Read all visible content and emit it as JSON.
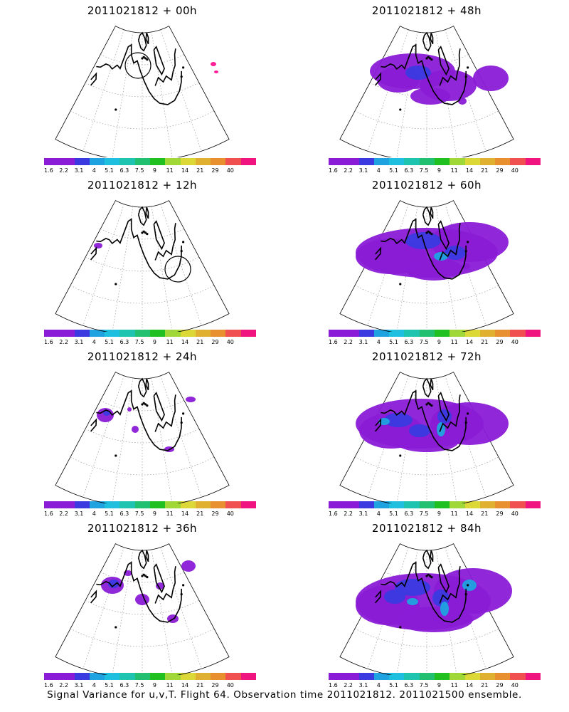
{
  "chart_data": [
    {
      "type": "heatmap",
      "title": "2011021812 + 00h",
      "ring": [
        194,
        92
      ],
      "blobs": [
        [
          300,
          90,
          4,
          3,
          "#ff1493"
        ],
        [
          304,
          101,
          3,
          2,
          "#ff1493"
        ]
      ]
    },
    {
      "type": "heatmap",
      "title": "2011021812 + 48h",
      "blobs": [
        [
          580,
          100,
          60,
          25,
          "#8a1bd6"
        ],
        [
          630,
          120,
          40,
          22,
          "#8a1bd6"
        ],
        [
          560,
          112,
          30,
          18,
          "#8a1bd6"
        ],
        [
          690,
          110,
          25,
          18,
          "#8a1bd6"
        ],
        [
          605,
          135,
          28,
          12,
          "#8a1bd6"
        ],
        [
          588,
          102,
          18,
          10,
          "#3a3ae0"
        ],
        [
          650,
          142,
          6,
          5,
          "#8a1bd6"
        ]
      ]
    },
    {
      "type": "heatmap",
      "title": "2011021812 + 12h",
      "ring": [
        250,
        378
      ],
      "blobs": [
        [
          138,
          345,
          6,
          4,
          "#8a1bd6"
        ]
      ]
    },
    {
      "type": "heatmap",
      "title": "2011021812 + 60h",
      "blobs": [
        [
          600,
          355,
          100,
          35,
          "#8a1bd6"
        ],
        [
          550,
          360,
          50,
          25,
          "#8a1bd6"
        ],
        [
          660,
          340,
          55,
          28,
          "#8a1bd6"
        ],
        [
          610,
          378,
          40,
          16,
          "#8a1bd6"
        ],
        [
          595,
          338,
          25,
          12,
          "#3a3ae0"
        ],
        [
          640,
          355,
          15,
          10,
          "#3a3ae0"
        ],
        [
          620,
          360,
          10,
          6,
          "#1fa3e0"
        ],
        [
          655,
          374,
          6,
          5,
          "#8a1bd6"
        ]
      ]
    },
    {
      "type": "heatmap",
      "title": "2011021812 + 24h",
      "blobs": [
        [
          148,
          583,
          12,
          10,
          "#8a1bd6"
        ],
        [
          150,
          580,
          5,
          4,
          "#3a3ae0"
        ],
        [
          190,
          603,
          5,
          5,
          "#8a1bd6"
        ],
        [
          238,
          631,
          7,
          4,
          "#8a1bd6"
        ],
        [
          268,
          561,
          7,
          4,
          "#8a1bd6"
        ],
        [
          182,
          575,
          3,
          3,
          "#8a1bd6"
        ]
      ]
    },
    {
      "type": "heatmap",
      "title": "2011021812 + 72h",
      "blobs": [
        [
          590,
          595,
          90,
          35,
          "#8a1bd6"
        ],
        [
          550,
          605,
          45,
          25,
          "#8a1bd6"
        ],
        [
          660,
          595,
          55,
          30,
          "#8a1bd6"
        ],
        [
          600,
          620,
          45,
          15,
          "#8a1bd6"
        ],
        [
          560,
          590,
          20,
          10,
          "#3a3ae0"
        ],
        [
          590,
          605,
          15,
          9,
          "#3a3ae0"
        ],
        [
          625,
          585,
          10,
          10,
          "#3a3ae0"
        ],
        [
          620,
          603,
          6,
          10,
          "#1fa3e0"
        ],
        [
          540,
          592,
          8,
          5,
          "#1fa3e0"
        ]
      ]
    },
    {
      "type": "heatmap",
      "title": "2011021812 + 36h",
      "blobs": [
        [
          158,
          822,
          16,
          12,
          "#8a1bd6"
        ],
        [
          160,
          820,
          8,
          6,
          "#3a3ae0"
        ],
        [
          200,
          842,
          10,
          8,
          "#8a1bd6"
        ],
        [
          225,
          823,
          6,
          5,
          "#8a1bd6"
        ],
        [
          243,
          869,
          8,
          6,
          "#8a1bd6"
        ],
        [
          265,
          795,
          10,
          8,
          "#8a1bd6"
        ],
        [
          180,
          805,
          6,
          4,
          "#8a1bd6"
        ]
      ]
    },
    {
      "type": "heatmap",
      "title": "2011021812 + 84h",
      "blobs": [
        [
          595,
          845,
          95,
          40,
          "#8a1bd6"
        ],
        [
          545,
          850,
          45,
          28,
          "#8a1bd6"
        ],
        [
          665,
          830,
          55,
          32,
          "#8a1bd6"
        ],
        [
          610,
          870,
          55,
          18,
          "#8a1bd6"
        ],
        [
          580,
          825,
          25,
          12,
          "#3a3ae0"
        ],
        [
          555,
          838,
          15,
          10,
          "#3a3ae0"
        ],
        [
          620,
          840,
          12,
          12,
          "#3a3ae0"
        ],
        [
          625,
          855,
          6,
          10,
          "#1fa3e0"
        ],
        [
          580,
          845,
          8,
          5,
          "#1fa3e0"
        ],
        [
          660,
          822,
          10,
          8,
          "#1fa3e0"
        ]
      ]
    }
  ],
  "colorbar": {
    "labels": [
      "1.6",
      "2.2",
      "3.1",
      "4",
      "5.1",
      "6.3",
      "7.5",
      "9",
      "11",
      "14",
      "21",
      "29",
      "40"
    ],
    "colors": [
      "#8a1bd6",
      "#8a1bd6",
      "#3a3ae0",
      "#1fa3e0",
      "#1fbfe0",
      "#1fc4b0",
      "#20c070",
      "#20c020",
      "#a0d838",
      "#dcd838",
      "#e0b030",
      "#e89030",
      "#f05050",
      "#f01480"
    ]
  },
  "footer": "Signal Variance for u,v,T. Flight 64. Observation time 2011021812. 2011021500 ensemble."
}
